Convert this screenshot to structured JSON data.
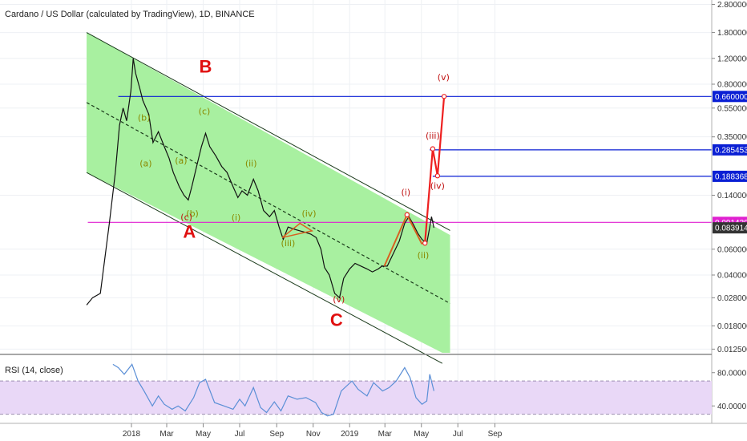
{
  "chart_data": {
    "type": "line",
    "title": "Cardano / US Dollar (calculated by TradingView), 1D, BINANCE",
    "price_axis": {
      "scale": "log",
      "range": [
        0.0118,
        3.0
      ],
      "ticks": [
        "2.800000",
        "1.800000",
        "1.200000",
        "0.800000",
        "0.550000",
        "0.350000",
        "0.140000",
        "0.060000",
        "0.040000",
        "0.028000",
        "0.018000",
        "0.012500"
      ]
    },
    "time_axis": {
      "ticks": [
        {
          "label": "2018",
          "date": "2018-01-01"
        },
        {
          "label": "Mar",
          "date": "2018-03-01"
        },
        {
          "label": "May",
          "date": "2018-05-01"
        },
        {
          "label": "Jul",
          "date": "2018-07-01"
        },
        {
          "label": "Sep",
          "date": "2018-09-01"
        },
        {
          "label": "Nov",
          "date": "2018-11-01"
        },
        {
          "label": "2019",
          "date": "2019-01-01"
        },
        {
          "label": "Mar",
          "date": "2019-03-01"
        },
        {
          "label": "May",
          "date": "2019-05-01"
        },
        {
          "label": "Jul",
          "date": "2019-07-01"
        },
        {
          "label": "Sep",
          "date": "2019-09-01"
        }
      ]
    },
    "price_series": {
      "name": "",
      "color": "#111111",
      "points": [
        [
          "2017-10-18",
          0.025
        ],
        [
          "2017-10-28",
          0.028
        ],
        [
          "2017-11-10",
          0.03
        ],
        [
          "2017-11-25",
          0.09
        ],
        [
          "2017-12-05",
          0.2
        ],
        [
          "2017-12-12",
          0.42
        ],
        [
          "2017-12-18",
          0.55
        ],
        [
          "2017-12-24",
          0.45
        ],
        [
          "2017-12-31",
          0.72
        ],
        [
          "2018-01-04",
          1.2
        ],
        [
          "2018-01-08",
          0.95
        ],
        [
          "2018-01-15",
          0.75
        ],
        [
          "2018-01-20",
          0.62
        ],
        [
          "2018-01-30",
          0.5
        ],
        [
          "2018-02-06",
          0.32
        ],
        [
          "2018-02-15",
          0.38
        ],
        [
          "2018-02-25",
          0.3
        ],
        [
          "2018-03-05",
          0.25
        ],
        [
          "2018-03-12",
          0.2
        ],
        [
          "2018-03-22",
          0.16
        ],
        [
          "2018-03-30",
          0.14
        ],
        [
          "2018-04-06",
          0.13
        ],
        [
          "2018-04-12",
          0.16
        ],
        [
          "2018-04-20",
          0.22
        ],
        [
          "2018-04-28",
          0.3
        ],
        [
          "2018-05-05",
          0.37
        ],
        [
          "2018-05-12",
          0.3
        ],
        [
          "2018-05-22",
          0.26
        ],
        [
          "2018-06-01",
          0.22
        ],
        [
          "2018-06-10",
          0.2
        ],
        [
          "2018-06-20",
          0.16
        ],
        [
          "2018-06-28",
          0.135
        ],
        [
          "2018-07-05",
          0.15
        ],
        [
          "2018-07-14",
          0.14
        ],
        [
          "2018-07-24",
          0.18
        ],
        [
          "2018-08-01",
          0.15
        ],
        [
          "2018-08-10",
          0.11
        ],
        [
          "2018-08-20",
          0.1
        ],
        [
          "2018-08-28",
          0.11
        ],
        [
          "2018-09-05",
          0.085
        ],
        [
          "2018-09-12",
          0.07
        ],
        [
          "2018-09-20",
          0.085
        ],
        [
          "2018-10-01",
          0.082
        ],
        [
          "2018-10-10",
          0.08
        ],
        [
          "2018-10-20",
          0.078
        ],
        [
          "2018-10-28",
          0.076
        ],
        [
          "2018-11-06",
          0.072
        ],
        [
          "2018-11-14",
          0.06
        ],
        [
          "2018-11-20",
          0.045
        ],
        [
          "2018-11-28",
          0.04
        ],
        [
          "2018-12-07",
          0.03
        ],
        [
          "2018-12-15",
          0.028
        ],
        [
          "2018-12-22",
          0.038
        ],
        [
          "2019-01-01",
          0.044
        ],
        [
          "2019-01-10",
          0.048
        ],
        [
          "2019-01-20",
          0.046
        ],
        [
          "2019-01-30",
          0.044
        ],
        [
          "2019-02-08",
          0.042
        ],
        [
          "2019-02-18",
          0.044
        ],
        [
          "2019-02-24",
          0.046
        ],
        [
          "2019-03-05",
          0.046
        ],
        [
          "2019-03-15",
          0.056
        ],
        [
          "2019-03-25",
          0.068
        ],
        [
          "2019-04-03",
          0.09
        ],
        [
          "2019-04-10",
          0.1
        ],
        [
          "2019-04-18",
          0.088
        ],
        [
          "2019-04-25",
          0.077
        ],
        [
          "2019-05-02",
          0.07
        ],
        [
          "2019-05-10",
          0.066
        ],
        [
          "2019-05-15",
          0.085
        ],
        [
          "2019-05-18",
          0.1
        ],
        [
          "2019-05-22",
          0.084
        ]
      ]
    },
    "rsi_panel": {
      "label": "RSI (14, close)",
      "range": [
        20,
        100
      ],
      "ticks": [
        "80.0000",
        "40.0000"
      ],
      "bands": [
        70,
        30
      ],
      "line_color": "#5b8fd6",
      "fill_color": "#e9d8f7",
      "points": [
        [
          "2017-12-01",
          90
        ],
        [
          "2017-12-10",
          86
        ],
        [
          "2017-12-20",
          78
        ],
        [
          "2018-01-02",
          90
        ],
        [
          "2018-01-12",
          70
        ],
        [
          "2018-01-22",
          58
        ],
        [
          "2018-02-05",
          40
        ],
        [
          "2018-02-15",
          52
        ],
        [
          "2018-02-25",
          42
        ],
        [
          "2018-03-10",
          36
        ],
        [
          "2018-03-20",
          40
        ],
        [
          "2018-04-01",
          34
        ],
        [
          "2018-04-15",
          50
        ],
        [
          "2018-04-25",
          68
        ],
        [
          "2018-05-05",
          72
        ],
        [
          "2018-05-20",
          44
        ],
        [
          "2018-06-05",
          40
        ],
        [
          "2018-06-20",
          36
        ],
        [
          "2018-07-01",
          48
        ],
        [
          "2018-07-10",
          40
        ],
        [
          "2018-07-24",
          62
        ],
        [
          "2018-08-05",
          38
        ],
        [
          "2018-08-15",
          32
        ],
        [
          "2018-08-28",
          45
        ],
        [
          "2018-09-08",
          34
        ],
        [
          "2018-09-20",
          52
        ],
        [
          "2018-10-05",
          48
        ],
        [
          "2018-10-20",
          50
        ],
        [
          "2018-11-05",
          44
        ],
        [
          "2018-11-15",
          32
        ],
        [
          "2018-11-25",
          28
        ],
        [
          "2018-12-05",
          30
        ],
        [
          "2018-12-18",
          58
        ],
        [
          "2019-01-05",
          70
        ],
        [
          "2019-01-15",
          60
        ],
        [
          "2019-01-30",
          52
        ],
        [
          "2019-02-10",
          68
        ],
        [
          "2019-02-25",
          58
        ],
        [
          "2019-03-08",
          62
        ],
        [
          "2019-03-20",
          70
        ],
        [
          "2019-04-03",
          86
        ],
        [
          "2019-04-12",
          74
        ],
        [
          "2019-04-22",
          50
        ],
        [
          "2019-05-02",
          42
        ],
        [
          "2019-05-10",
          46
        ],
        [
          "2019-05-15",
          78
        ],
        [
          "2019-05-22",
          58
        ]
      ]
    },
    "channel": {
      "fill_color": "#a8f0a0",
      "upper_line": [
        [
          "2017-10-18",
          1.8
        ],
        [
          "2019-05-23",
          0.092
        ]
      ],
      "lower_line": [
        [
          "2017-10-18",
          0.2
        ],
        [
          "2019-06-05",
          0.01
        ]
      ],
      "mid_line": [
        [
          "2017-10-18",
          0.6
        ],
        [
          "2019-06-15",
          0.026
        ]
      ],
      "right_edge": [
        "2019-06-18",
        0.075,
        0.0118
      ]
    },
    "horizontal_levels": [
      {
        "value": 0.66,
        "label": "0.660000",
        "color": "#0a1fd4",
        "start": "2017-12-10"
      },
      {
        "value": 0.285453,
        "label": "0.285453",
        "color": "#0a1fd4",
        "start": "2019-05-15"
      },
      {
        "value": 0.188368,
        "label": "0.188368",
        "color": "#0a1fd4",
        "start": "2019-05-20"
      },
      {
        "value": 0.09143,
        "label": "0.091430",
        "color": "#e020d0",
        "start": "2017-10-20"
      }
    ],
    "current_price": {
      "value": 0.083914,
      "label": "0.083914",
      "color": "#333333"
    },
    "projection_path": {
      "color": "#ee2020",
      "points": [
        [
          "2019-05-07",
          0.066
        ],
        [
          "2019-05-20",
          0.29
        ],
        [
          "2019-05-28",
          0.19
        ],
        [
          "2019-06-08",
          0.66
        ]
      ]
    },
    "wave_i_path": {
      "color": "#d86020",
      "points": [
        [
          "2019-02-28",
          0.046
        ],
        [
          "2019-04-07",
          0.103
        ],
        [
          "2019-05-02",
          0.065
        ]
      ]
    },
    "triangle_paths": [
      {
        "color": "#d86020",
        "points": [
          [
            "2018-09-10",
            0.072
          ],
          [
            "2018-10-10",
            0.09
          ],
          [
            "2018-10-30",
            0.08
          ],
          [
            "2018-09-10",
            0.072
          ]
        ]
      }
    ],
    "wave_labels": [
      {
        "text": "(a)",
        "date": "2018-03-25",
        "value": 0.23,
        "color": "#8a8a00"
      },
      {
        "text": "(b)",
        "date": "2018-01-22",
        "value": 0.45,
        "color": "#8a8a00"
      },
      {
        "text": "(a)",
        "date": "2018-01-25",
        "value": 0.22,
        "color": "#8a8a00"
      },
      {
        "text": "(b)",
        "date": "2018-04-13",
        "value": 0.1,
        "color": "#8a8a00"
      },
      {
        "text": "(c)",
        "date": "2018-04-03",
        "value": 0.095,
        "color": "#c01010"
      },
      {
        "text": "(c)",
        "date": "2018-05-03",
        "value": 0.5,
        "color": "#8a8a00"
      },
      {
        "text": "(ii)",
        "date": "2018-07-20",
        "value": 0.22,
        "color": "#8a8a00"
      },
      {
        "text": "(i)",
        "date": "2018-06-25",
        "value": 0.094,
        "color": "#8a8a00"
      },
      {
        "text": "(iii)",
        "date": "2018-09-20",
        "value": 0.063,
        "color": "#8a8a00"
      },
      {
        "text": "(iv)",
        "date": "2018-10-25",
        "value": 0.1,
        "color": "#8a8a00"
      },
      {
        "text": "(v)",
        "date": "2018-12-14",
        "value": 0.026,
        "color": "#c01010"
      },
      {
        "text": "(i)",
        "date": "2019-04-05",
        "value": 0.14,
        "color": "#c01010"
      },
      {
        "text": "(ii)",
        "date": "2019-05-04",
        "value": 0.052,
        "color": "#8a8a00"
      },
      {
        "text": "(iii)",
        "date": "2019-05-20",
        "value": 0.34,
        "color": "#c01010"
      },
      {
        "text": "(iv)",
        "date": "2019-05-28",
        "value": 0.155,
        "color": "#c01010"
      },
      {
        "text": "(v)",
        "date": "2019-06-07",
        "value": 0.85,
        "color": "#c01010"
      }
    ],
    "big_labels": [
      {
        "text": "A",
        "date": "2018-04-08",
        "value": 0.072
      },
      {
        "text": "B",
        "date": "2018-05-05",
        "value": 0.96
      },
      {
        "text": "C",
        "date": "2018-12-10",
        "value": 0.018
      }
    ]
  }
}
